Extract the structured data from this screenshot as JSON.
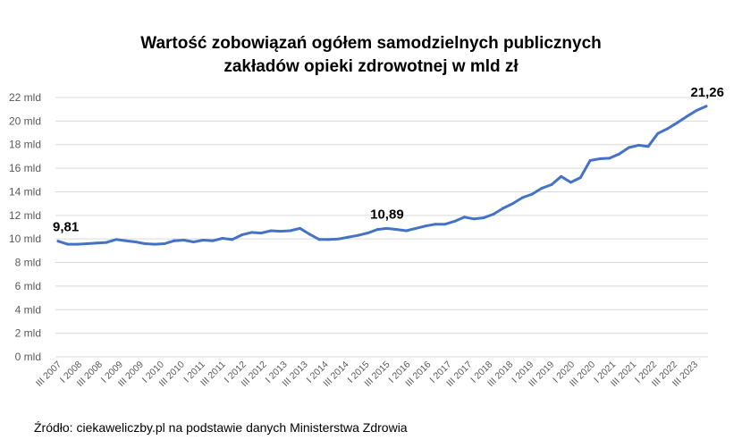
{
  "chart_data": {
    "type": "line",
    "title_line1": "Wartość zobowiązań ogółem samodzielnych publicznych",
    "title_line2": "zakładów opieki zdrowotnej w mld zł",
    "xlabel": "",
    "ylabel": "",
    "ylim": [
      0,
      22
    ],
    "y_ticks": [
      "0 mld",
      "2 mld",
      "4 mld",
      "6 mld",
      "8 mld",
      "10 mld",
      "12 mld",
      "14 mld",
      "16 mld",
      "18 mld",
      "20 mld",
      "22 mld"
    ],
    "x_tick_labels": [
      "III 2007",
      "I 2008",
      "III 2008",
      "I 2009",
      "III 2009",
      "I 2010",
      "III 2010",
      "I 2011",
      "III 2011",
      "I 2012",
      "III 2012",
      "I 2013",
      "III 2013",
      "I 2014",
      "III 2014",
      "I 2015",
      "III 2015",
      "I 2016",
      "III 2016",
      "I 2017",
      "III 2017",
      "I 2018",
      "III 2018",
      "I 2019",
      "III 2019",
      "I 2020",
      "III 2020",
      "I 2021",
      "III 2021",
      "I 2022",
      "III 2022",
      "III 2023"
    ],
    "grid": true,
    "color": "#4472c4",
    "series": [
      {
        "values": [
          9.81,
          9.55,
          9.55,
          9.6,
          9.65,
          9.7,
          9.95,
          9.85,
          9.75,
          9.6,
          9.55,
          9.6,
          9.85,
          9.9,
          9.75,
          9.9,
          9.85,
          10.05,
          9.95,
          10.35,
          10.55,
          10.5,
          10.7,
          10.65,
          10.7,
          10.9,
          10.4,
          9.95,
          9.95,
          10.0,
          10.15,
          10.3,
          10.5,
          10.8,
          10.89,
          10.8,
          10.7,
          10.9,
          11.1,
          11.25,
          11.25,
          11.5,
          11.85,
          11.7,
          11.8,
          12.1,
          12.6,
          13.0,
          13.5,
          13.8,
          14.3,
          14.6,
          15.3,
          14.8,
          15.2,
          16.65,
          16.8,
          16.85,
          17.2,
          17.75,
          17.95,
          17.85,
          18.95,
          19.35,
          19.85,
          20.4,
          20.9,
          21.26
        ]
      }
    ],
    "data_labels": [
      {
        "index": 0,
        "text": "9,81"
      },
      {
        "index": 34,
        "text": "10,89"
      },
      {
        "index": 67,
        "text": "21,26"
      }
    ]
  },
  "source_note": "Źródło: ciekaweliczby.pl na podstawie danych Ministerstwa Zdrowia"
}
